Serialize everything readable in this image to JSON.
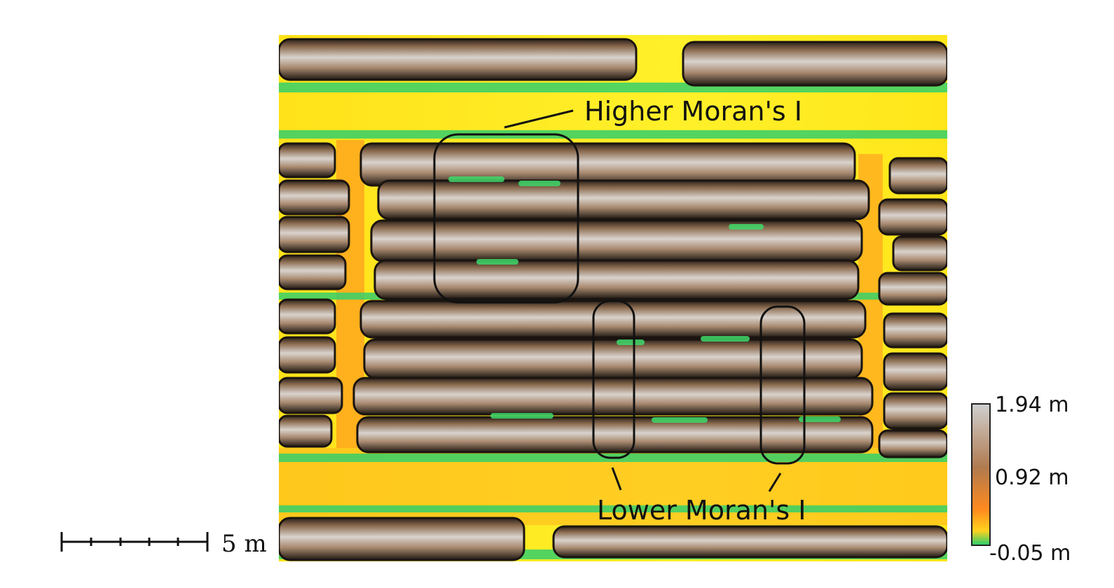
{
  "map": {
    "annotations": {
      "higher": "Higher Moran's I",
      "lower": "Lower Moran's I"
    },
    "legend": {
      "max_label": "1.94 m",
      "mid_label": "0.92 m",
      "min_label": "-0.05 m",
      "colors": {
        "top": "#cfcfcf",
        "upper": "#b07a4e",
        "mid": "#ff8a1e",
        "low": "#ffd21e",
        "bottom": "#2ecf6a"
      }
    },
    "scale_bar": {
      "label": "5 m"
    }
  }
}
